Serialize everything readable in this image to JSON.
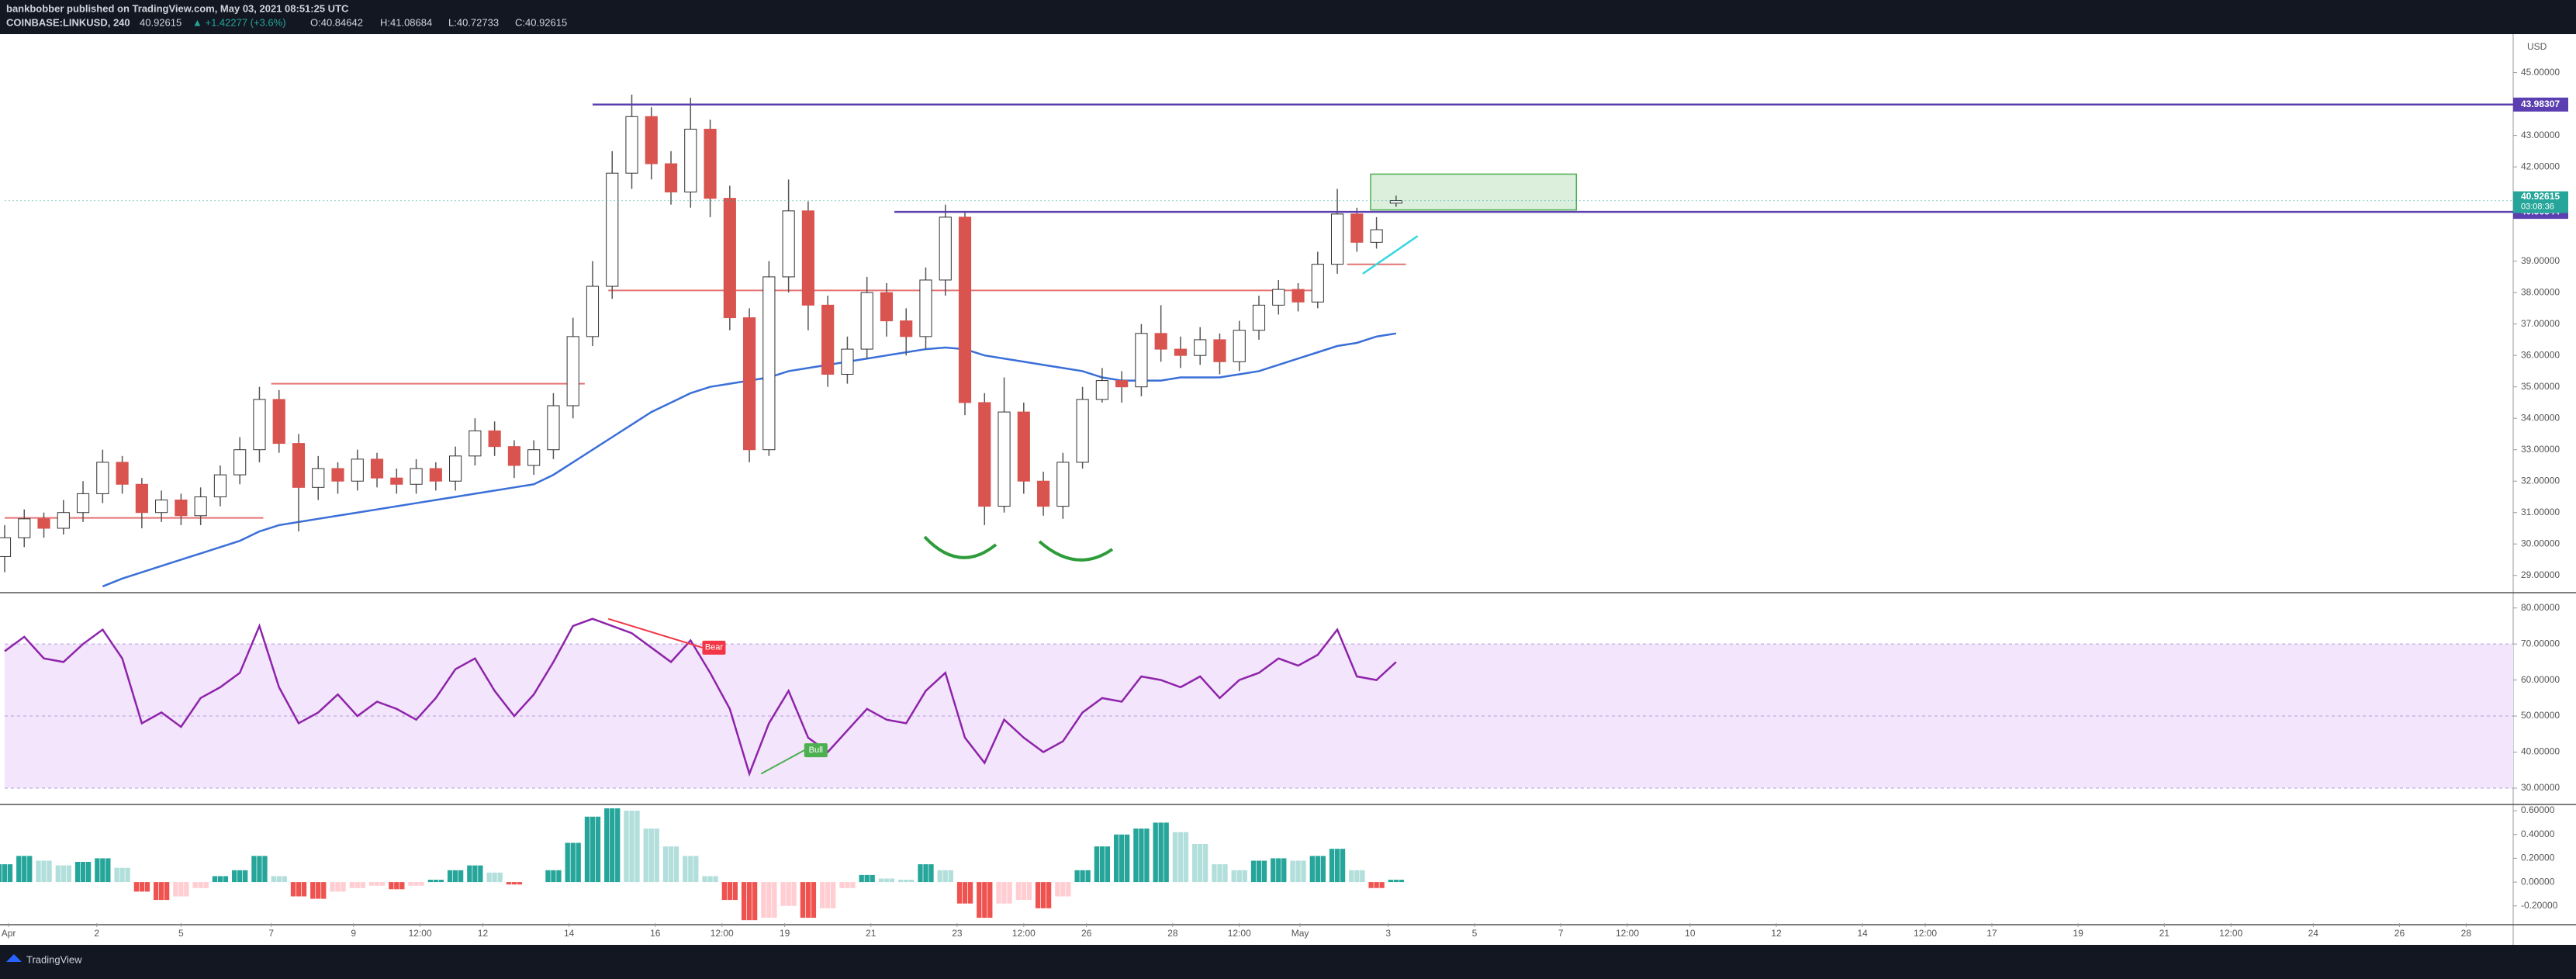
{
  "header": {
    "publisher": "bankbobber published on TradingView.com, May 03, 2021 08:51:25 UTC",
    "symbol": "COINBASE:LINKUSD, 240",
    "price": "40.92615",
    "change": "▲ +1.42277 (+3.6%)",
    "o": "O:40.84642",
    "h": "H:41.08684",
    "l": "L:40.72733",
    "c": "C:40.92615"
  },
  "footer": {
    "brand": "TradingView"
  },
  "chart_data": [
    {
      "type": "candlestick",
      "currency": "USD",
      "up_color": "#ffffff",
      "down_color": "#d9534f",
      "wick_color": "#555555",
      "xlim": [
        0,
        128
      ],
      "ylim": [
        28.5,
        46.15
      ],
      "xticks": [
        {
          "value": 0.2,
          "label": "Apr"
        },
        {
          "value": 4.7,
          "label": "2"
        },
        {
          "value": 9.0,
          "label": "5"
        },
        {
          "value": 13.6,
          "label": "7"
        },
        {
          "value": 17.8,
          "label": "9"
        },
        {
          "value": 21.2,
          "label": "12:00"
        },
        {
          "value": 24.4,
          "label": "12"
        },
        {
          "value": 28.8,
          "label": "14"
        },
        {
          "value": 33.2,
          "label": "16"
        },
        {
          "value": 36.6,
          "label": "12:00"
        },
        {
          "value": 39.8,
          "label": "19"
        },
        {
          "value": 44.2,
          "label": "21"
        },
        {
          "value": 48.6,
          "label": "23"
        },
        {
          "value": 52.0,
          "label": "12:00"
        },
        {
          "value": 55.2,
          "label": "26"
        },
        {
          "value": 59.6,
          "label": "28"
        },
        {
          "value": 63.0,
          "label": "12:00"
        },
        {
          "value": 66.1,
          "label": "May"
        },
        {
          "value": 70.6,
          "label": "3"
        },
        {
          "value": 75.0,
          "label": "5"
        },
        {
          "value": 79.4,
          "label": "7"
        },
        {
          "value": 82.8,
          "label": "12:00"
        },
        {
          "value": 86.0,
          "label": "10"
        },
        {
          "value": 90.4,
          "label": "12"
        },
        {
          "value": 94.8,
          "label": "14"
        },
        {
          "value": 98.0,
          "label": "12:00"
        },
        {
          "value": 101.4,
          "label": "17"
        },
        {
          "value": 105.8,
          "label": "19"
        },
        {
          "value": 110.2,
          "label": "21"
        },
        {
          "value": 113.6,
          "label": "12:00"
        },
        {
          "value": 117.8,
          "label": "24"
        },
        {
          "value": 122.2,
          "label": "26"
        },
        {
          "value": 125.6,
          "label": "28"
        }
      ],
      "yticks": [
        {
          "value": 29,
          "label": "29.00000"
        },
        {
          "value": 30,
          "label": "30.00000"
        },
        {
          "value": 31,
          "label": "31.00000"
        },
        {
          "value": 32,
          "label": "32.00000"
        },
        {
          "value": 33,
          "label": "33.00000"
        },
        {
          "value": 34,
          "label": "34.00000"
        },
        {
          "value": 35,
          "label": "35.00000"
        },
        {
          "value": 36,
          "label": "36.00000"
        },
        {
          "value": 37,
          "label": "37.00000"
        },
        {
          "value": 38,
          "label": "38.00000"
        },
        {
          "value": 39,
          "label": "39.00000"
        },
        {
          "value": 41,
          "label": "41.00000"
        },
        {
          "value": 42,
          "label": "42.00000"
        },
        {
          "value": 43,
          "label": "43.00000"
        },
        {
          "value": 45,
          "label": "45.00000"
        }
      ],
      "open": [
        29.6,
        30.2,
        30.8,
        30.5,
        31.0,
        31.6,
        32.6,
        31.9,
        31.0,
        31.4,
        30.9,
        31.5,
        32.2,
        33.0,
        34.6,
        33.2,
        31.8,
        32.4,
        32.0,
        32.7,
        32.1,
        31.9,
        32.4,
        32.0,
        32.8,
        33.6,
        33.1,
        32.5,
        33.0,
        34.4,
        36.6,
        38.2,
        41.8,
        43.6,
        42.1,
        41.2,
        43.2,
        41.0,
        37.2,
        33.0,
        38.5,
        40.6,
        37.6,
        35.4,
        36.2,
        38.0,
        37.1,
        36.6,
        38.4,
        40.4,
        34.5,
        31.2,
        34.2,
        32.0,
        31.2,
        32.6,
        34.6,
        35.2,
        35.0,
        36.7,
        36.2,
        36.0,
        36.5,
        35.8,
        36.8,
        37.6,
        38.1,
        37.7,
        38.9,
        40.5,
        39.6,
        40.84642
      ],
      "high": [
        30.6,
        31.1,
        31.0,
        31.4,
        32.0,
        33.0,
        32.8,
        32.1,
        31.7,
        31.6,
        31.8,
        32.5,
        33.4,
        35.0,
        34.9,
        33.5,
        32.8,
        32.6,
        33.0,
        32.9,
        32.4,
        32.7,
        32.6,
        33.1,
        34.0,
        33.9,
        33.3,
        33.3,
        34.8,
        37.2,
        39.0,
        42.5,
        44.3,
        43.9,
        42.5,
        44.2,
        43.5,
        41.4,
        37.5,
        39.0,
        41.6,
        40.9,
        37.9,
        36.6,
        38.5,
        38.3,
        37.5,
        38.8,
        40.8,
        40.6,
        34.8,
        35.3,
        34.5,
        32.3,
        32.9,
        35.0,
        35.6,
        35.5,
        37.0,
        37.6,
        36.6,
        36.9,
        36.7,
        37.1,
        37.9,
        38.4,
        38.3,
        39.3,
        41.3,
        40.7,
        40.4,
        41.08684
      ],
      "low": [
        29.1,
        29.9,
        30.2,
        30.3,
        30.7,
        31.3,
        31.6,
        30.5,
        30.7,
        30.6,
        30.6,
        31.2,
        31.9,
        32.6,
        32.9,
        30.4,
        31.4,
        31.6,
        31.7,
        31.8,
        31.6,
        31.6,
        31.7,
        31.7,
        32.5,
        32.8,
        32.1,
        32.2,
        32.7,
        34.0,
        36.3,
        37.8,
        41.3,
        41.6,
        40.8,
        40.7,
        40.4,
        36.8,
        32.6,
        32.8,
        38.0,
        36.8,
        35.0,
        35.1,
        35.9,
        36.6,
        36.0,
        36.2,
        37.9,
        34.1,
        30.6,
        31.0,
        31.6,
        30.9,
        30.8,
        32.4,
        34.5,
        34.5,
        34.7,
        35.8,
        35.6,
        35.7,
        35.4,
        35.5,
        36.5,
        37.3,
        37.4,
        37.5,
        38.6,
        39.3,
        39.4,
        40.72733
      ],
      "close": [
        30.2,
        30.8,
        30.5,
        31.0,
        31.6,
        32.6,
        31.9,
        31.0,
        31.4,
        30.9,
        31.5,
        32.2,
        33.0,
        34.6,
        33.2,
        31.8,
        32.4,
        32.0,
        32.7,
        32.1,
        31.9,
        32.4,
        32.0,
        32.8,
        33.6,
        33.1,
        32.5,
        33.0,
        34.4,
        36.6,
        38.2,
        41.8,
        43.6,
        42.1,
        41.2,
        43.2,
        41.0,
        37.2,
        33.0,
        38.5,
        40.6,
        37.6,
        35.4,
        36.2,
        38.0,
        37.1,
        36.6,
        38.4,
        40.4,
        34.5,
        31.2,
        34.2,
        32.0,
        31.2,
        32.6,
        34.6,
        35.2,
        35.0,
        36.7,
        36.2,
        36.0,
        36.5,
        35.8,
        36.8,
        37.6,
        38.1,
        37.7,
        38.9,
        40.5,
        39.6,
        40.0,
        40.92615
      ],
      "ma": {
        "color": "#3a6fd8",
        "values": [
          null,
          null,
          null,
          null,
          null,
          28.65,
          28.9,
          29.1,
          29.3,
          29.5,
          29.7,
          29.9,
          30.1,
          30.4,
          30.6,
          30.7,
          30.8,
          30.9,
          31.0,
          31.1,
          31.2,
          31.3,
          31.4,
          31.5,
          31.6,
          31.7,
          31.8,
          31.9,
          32.2,
          32.6,
          33.0,
          33.4,
          33.8,
          34.2,
          34.5,
          34.8,
          35.0,
          35.1,
          35.2,
          35.3,
          35.5,
          35.6,
          35.7,
          35.8,
          35.9,
          36.0,
          36.1,
          36.2,
          36.25,
          36.2,
          36.0,
          35.9,
          35.8,
          35.7,
          35.6,
          35.5,
          35.3,
          35.2,
          35.2,
          35.2,
          35.3,
          35.3,
          35.3,
          35.4,
          35.5,
          35.7,
          35.9,
          36.1,
          36.3,
          36.4,
          36.6,
          36.7
        ]
      },
      "levels": [
        {
          "value": 43.98307,
          "from": 30.0,
          "color": "#5b3fb0"
        },
        {
          "value": 40.56844,
          "from": 45.4,
          "color": "#5b3fb0"
        }
      ],
      "last_price": 40.92615,
      "countdown": "03:08:36",
      "last_color": "#26a69a",
      "lines": [
        {
          "value": 38.07,
          "from": 30.8,
          "to": 66.8
        },
        {
          "value": 35.1,
          "from": 13.6,
          "to": 29.6
        },
        {
          "value": 30.83,
          "from": 0,
          "to": 13.2
        },
        {
          "value": 38.9,
          "from": 68.5,
          "to": 71.5
        }
      ],
      "line_color": "#e57373",
      "zone": {
        "from": 69.7,
        "to": 80.2,
        "low": 40.63,
        "high": 41.77,
        "color": "#4caf50"
      },
      "trendline": {
        "x": [
          69.3,
          72.1
        ],
        "y": [
          38.6,
          39.8
        ],
        "color": "#33d6e0"
      }
    },
    {
      "type": "line",
      "color": "#8e24aa",
      "xlim": [
        0,
        128
      ],
      "ylim": [
        25.9,
        83.6
      ],
      "yticks": [
        {
          "value": 30,
          "label": "30.00000"
        },
        {
          "value": 40,
          "label": "40.00000"
        },
        {
          "value": 50,
          "label": "50.00000"
        },
        {
          "value": 60,
          "label": "60.00000"
        },
        {
          "value": 70,
          "label": "70.00000"
        },
        {
          "value": 80,
          "label": "80.00000"
        }
      ],
      "band": [
        30,
        70
      ],
      "mid": 50,
      "band_color": "#f3e5fb",
      "values": [
        68,
        72,
        66,
        65,
        70,
        74,
        66,
        48,
        51,
        47,
        55,
        58,
        62,
        75,
        58,
        48,
        51,
        56,
        50,
        54,
        52,
        49,
        55,
        63,
        66,
        57,
        50,
        56,
        65,
        75,
        77,
        75,
        73,
        69,
        65,
        71,
        62,
        52,
        34,
        48,
        57,
        44,
        40,
        46,
        52,
        49,
        48,
        57,
        62,
        44,
        37,
        49,
        44,
        40,
        43,
        51,
        55,
        54,
        61,
        60,
        58,
        61,
        55,
        60,
        62,
        66,
        64,
        67,
        74,
        61,
        60,
        65
      ],
      "divergences": [
        {
          "label": "Bear",
          "x": [
            30.8,
            35.6
          ],
          "y": [
            77,
            69
          ],
          "color": "#f23645"
        },
        {
          "label": "Bull",
          "x": [
            38.6,
            40.8
          ],
          "y": [
            34,
            40.5
          ],
          "color": "#4caf50"
        }
      ]
    },
    {
      "type": "histogram",
      "xlim": [
        0,
        128
      ],
      "ylim": [
        -0.345,
        0.62
      ],
      "colors": {
        "up_strong": "#26a69a",
        "up_weak": "#b2dfdb",
        "down_strong": "#ef5350",
        "down_weak": "#ffcdd2"
      },
      "yticks": [
        {
          "value": -0.2,
          "label": "-0.20000"
        },
        {
          "value": 0,
          "label": "0.00000"
        },
        {
          "value": 0.2,
          "label": "0.20000"
        },
        {
          "value": 0.4,
          "label": "0.40000"
        },
        {
          "value": 0.6,
          "label": "0.60000"
        }
      ],
      "values": [
        0.15,
        0.22,
        0.18,
        0.14,
        0.17,
        0.2,
        0.12,
        -0.08,
        -0.15,
        -0.12,
        -0.05,
        0.05,
        0.1,
        0.22,
        0.05,
        -0.12,
        -0.14,
        -0.08,
        -0.05,
        -0.03,
        -0.06,
        -0.03,
        0.02,
        0.1,
        0.14,
        0.08,
        -0.02,
        0.0,
        0.1,
        0.33,
        0.55,
        0.62,
        0.6,
        0.45,
        0.3,
        0.22,
        0.05,
        -0.15,
        -0.32,
        -0.3,
        -0.2,
        -0.3,
        -0.22,
        -0.05,
        0.06,
        0.03,
        0.02,
        0.15,
        0.1,
        -0.18,
        -0.3,
        -0.18,
        -0.15,
        -0.22,
        -0.12,
        0.1,
        0.3,
        0.4,
        0.45,
        0.5,
        0.42,
        0.32,
        0.15,
        0.1,
        0.18,
        0.2,
        0.18,
        0.22,
        0.28,
        0.1,
        -0.05,
        0.02
      ]
    }
  ]
}
